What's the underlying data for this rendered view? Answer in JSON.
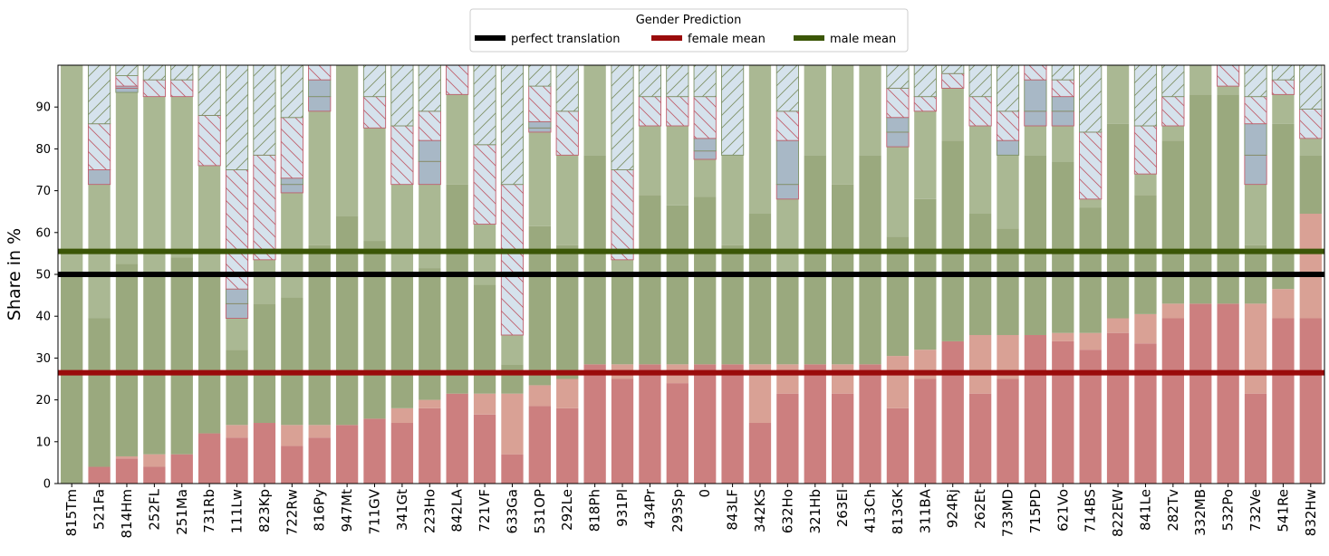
{
  "chart_data": {
    "type": "bar",
    "ylabel": "Share in %",
    "ylim": [
      0,
      100
    ],
    "yticks": [
      0,
      10,
      20,
      30,
      40,
      50,
      60,
      70,
      80,
      90
    ],
    "legend": {
      "title": "Gender Prediction",
      "placement": "top-center",
      "entries": [
        {
          "label": "perfect translation",
          "color": "#000000"
        },
        {
          "label": "female mean",
          "color": "#9a0b0b"
        },
        {
          "label": "male mean",
          "color": "#3b5607"
        }
      ]
    },
    "hlines": [
      {
        "name": "perfect translation",
        "y": 50,
        "color": "#000000"
      },
      {
        "name": "female mean",
        "y": 26.5,
        "color": "#9a0b0b"
      },
      {
        "name": "male mean",
        "y": 55.5,
        "color": "#3b5607"
      }
    ],
    "colors": {
      "female_dark": "#cc7f7f",
      "female_light": "#d9a195",
      "male_dark": "#9aa97e",
      "male_light": "#aab893",
      "neutral_hatch": "#d5e2ec",
      "other_steel": "#a8b8c6",
      "hatch_red": "#c0606e",
      "hatch_green": "#7f9268"
    },
    "categories": [
      "815Tm",
      "521Fa",
      "814Hm",
      "252FL",
      "251Ma",
      "731Rb",
      "111Lw",
      "823Kp",
      "722Rw",
      "816Py",
      "947Mt",
      "711GV",
      "341Gt",
      "223Ho",
      "842LA",
      "721VF",
      "633Ga",
      "531OP",
      "292Le",
      "818Ph",
      "931Pl",
      "434Pr",
      "293Sp",
      "0",
      "843LF",
      "342KS",
      "632Ho",
      "321Hb",
      "263El",
      "413Ch",
      "813GK",
      "311BA",
      "924Rj",
      "262Et",
      "733MD",
      "715PD",
      "621Vo",
      "714BS",
      "822EW",
      "841Le",
      "282Tv",
      "332MB",
      "532Po",
      "732Ve",
      "541Re",
      "832Hw"
    ],
    "segments_legend": [
      "female",
      "female (lighter)",
      "male",
      "male (lighter)",
      "other",
      "neutral (red hatch)",
      "neutral (green hatch)"
    ],
    "stacks": [
      [
        [
          0,
          "m_dark"
        ],
        [
          50,
          "m_light"
        ],
        [
          100,
          "end"
        ]
      ],
      [
        [
          0,
          "f_dark"
        ],
        [
          4,
          "m_dark"
        ],
        [
          39.5,
          "m_light"
        ],
        [
          71.5,
          "o_red"
        ],
        [
          75,
          "n_red"
        ],
        [
          86,
          "n_green"
        ],
        [
          100,
          "end"
        ]
      ],
      [
        [
          0,
          "f_dark"
        ],
        [
          6,
          "f_light"
        ],
        [
          6.5,
          "m_dark"
        ],
        [
          52.5,
          "m_light"
        ],
        [
          93.5,
          "o_green"
        ],
        [
          94.5,
          "o_red"
        ],
        [
          95,
          "n_red"
        ],
        [
          97.5,
          "n_green"
        ],
        [
          100,
          "end"
        ]
      ],
      [
        [
          0,
          "f_dark"
        ],
        [
          4,
          "f_light"
        ],
        [
          7,
          "m_dark"
        ],
        [
          50,
          "m_light"
        ],
        [
          92.5,
          "n_red"
        ],
        [
          96.5,
          "n_green"
        ],
        [
          100,
          "end"
        ]
      ],
      [
        [
          0,
          "f_dark"
        ],
        [
          7,
          "m_dark"
        ],
        [
          54,
          "m_light"
        ],
        [
          92.5,
          "n_red"
        ],
        [
          96.5,
          "n_green"
        ],
        [
          100,
          "end"
        ]
      ],
      [
        [
          0,
          "f_dark"
        ],
        [
          12,
          "m_dark"
        ],
        [
          50,
          "m_light"
        ],
        [
          76,
          "n_red"
        ],
        [
          88,
          "n_green"
        ],
        [
          100,
          "end"
        ]
      ],
      [
        [
          0,
          "f_dark"
        ],
        [
          11,
          "f_light"
        ],
        [
          14,
          "m_dark"
        ],
        [
          32,
          "m_light"
        ],
        [
          39.5,
          "o_red"
        ],
        [
          43,
          "o_green"
        ],
        [
          46.5,
          "n_red"
        ],
        [
          75,
          "n_green"
        ],
        [
          100,
          "end"
        ]
      ],
      [
        [
          0,
          "f_dark"
        ],
        [
          14.5,
          "m_dark"
        ],
        [
          43,
          "m_light"
        ],
        [
          53.5,
          "n_red"
        ],
        [
          78.5,
          "n_green"
        ],
        [
          100,
          "end"
        ]
      ],
      [
        [
          0,
          "f_dark"
        ],
        [
          9,
          "f_light"
        ],
        [
          14,
          "m_dark"
        ],
        [
          44.5,
          "m_light"
        ],
        [
          69.5,
          "o_red"
        ],
        [
          71.5,
          "o_green"
        ],
        [
          73,
          "n_red"
        ],
        [
          87.5,
          "n_green"
        ],
        [
          100,
          "end"
        ]
      ],
      [
        [
          0,
          "f_dark"
        ],
        [
          11,
          "f_light"
        ],
        [
          14,
          "m_dark"
        ],
        [
          57,
          "m_light"
        ],
        [
          89,
          "o_red"
        ],
        [
          92.5,
          "o_green"
        ],
        [
          96.5,
          "n_red"
        ],
        [
          100,
          "end"
        ]
      ],
      [
        [
          0,
          "f_dark"
        ],
        [
          14,
          "m_dark"
        ],
        [
          64,
          "m_light"
        ],
        [
          100,
          "end"
        ]
      ],
      [
        [
          0,
          "f_dark"
        ],
        [
          15.5,
          "m_dark"
        ],
        [
          58,
          "m_light"
        ],
        [
          85,
          "n_red"
        ],
        [
          92.5,
          "n_green"
        ],
        [
          100,
          "end"
        ]
      ],
      [
        [
          0,
          "f_dark"
        ],
        [
          14.5,
          "f_light"
        ],
        [
          18,
          "m_dark"
        ],
        [
          50,
          "m_light"
        ],
        [
          71.5,
          "n_red"
        ],
        [
          85.5,
          "n_green"
        ],
        [
          100,
          "end"
        ]
      ],
      [
        [
          0,
          "f_dark"
        ],
        [
          18,
          "f_light"
        ],
        [
          20,
          "m_dark"
        ],
        [
          51.5,
          "m_light"
        ],
        [
          71.5,
          "o_red"
        ],
        [
          77,
          "o_green"
        ],
        [
          82,
          "n_red"
        ],
        [
          89,
          "n_green"
        ],
        [
          100,
          "end"
        ]
      ],
      [
        [
          0,
          "f_dark"
        ],
        [
          21.5,
          "m_dark"
        ],
        [
          71.5,
          "m_light"
        ],
        [
          93,
          "n_red"
        ],
        [
          100,
          "end"
        ]
      ],
      [
        [
          0,
          "f_dark"
        ],
        [
          16.5,
          "f_light"
        ],
        [
          21.5,
          "m_dark"
        ],
        [
          47.5,
          "m_light"
        ],
        [
          62,
          "n_red"
        ],
        [
          81,
          "n_green"
        ],
        [
          100,
          "end"
        ]
      ],
      [
        [
          0,
          "f_dark"
        ],
        [
          7,
          "f_light"
        ],
        [
          21.5,
          "m_dark"
        ],
        [
          28.5,
          "m_light"
        ],
        [
          35.5,
          "n_red"
        ],
        [
          71.5,
          "n_green"
        ],
        [
          100,
          "end"
        ]
      ],
      [
        [
          0,
          "f_dark"
        ],
        [
          18.5,
          "f_light"
        ],
        [
          23.5,
          "m_dark"
        ],
        [
          61.5,
          "m_light"
        ],
        [
          84,
          "o_red"
        ],
        [
          85,
          "o_green"
        ],
        [
          86.5,
          "n_red"
        ],
        [
          95,
          "n_green"
        ],
        [
          100,
          "end"
        ]
      ],
      [
        [
          0,
          "f_dark"
        ],
        [
          18,
          "f_light"
        ],
        [
          25,
          "m_dark"
        ],
        [
          57,
          "m_light"
        ],
        [
          78.5,
          "n_red"
        ],
        [
          89,
          "n_green"
        ],
        [
          100,
          "end"
        ]
      ],
      [
        [
          0,
          "f_dark"
        ],
        [
          28.5,
          "m_dark"
        ],
        [
          78.5,
          "m_light"
        ],
        [
          100,
          "end"
        ]
      ],
      [
        [
          0,
          "f_dark"
        ],
        [
          25,
          "f_light"
        ],
        [
          28.5,
          "m_dark"
        ],
        [
          50,
          "m_light"
        ],
        [
          53.5,
          "n_red"
        ],
        [
          75,
          "n_green"
        ],
        [
          100,
          "end"
        ]
      ],
      [
        [
          0,
          "f_dark"
        ],
        [
          28.5,
          "m_dark"
        ],
        [
          69,
          "m_light"
        ],
        [
          85.5,
          "n_red"
        ],
        [
          92.5,
          "n_green"
        ],
        [
          100,
          "end"
        ]
      ],
      [
        [
          0,
          "f_dark"
        ],
        [
          24,
          "f_light"
        ],
        [
          28.5,
          "m_dark"
        ],
        [
          66.5,
          "m_light"
        ],
        [
          85.5,
          "n_red"
        ],
        [
          92.5,
          "n_green"
        ],
        [
          100,
          "end"
        ]
      ],
      [
        [
          0,
          "f_dark"
        ],
        [
          28.5,
          "m_dark"
        ],
        [
          68.5,
          "m_light"
        ],
        [
          77.5,
          "o_red"
        ],
        [
          79.5,
          "o_green"
        ],
        [
          82.5,
          "n_red"
        ],
        [
          92.5,
          "n_green"
        ],
        [
          100,
          "end"
        ]
      ],
      [
        [
          0,
          "f_dark"
        ],
        [
          28.5,
          "m_dark"
        ],
        [
          57,
          "m_light"
        ],
        [
          78.5,
          "n_green"
        ],
        [
          100,
          "end"
        ]
      ],
      [
        [
          0,
          "f_dark"
        ],
        [
          14.5,
          "f_light"
        ],
        [
          28.5,
          "m_dark"
        ],
        [
          64.5,
          "m_light"
        ],
        [
          100,
          "end"
        ]
      ],
      [
        [
          0,
          "f_dark"
        ],
        [
          21.5,
          "f_light"
        ],
        [
          28.5,
          "m_dark"
        ],
        [
          50,
          "m_light"
        ],
        [
          68,
          "o_red"
        ],
        [
          71.5,
          "o_green"
        ],
        [
          82,
          "n_red"
        ],
        [
          89,
          "n_green"
        ],
        [
          100,
          "end"
        ]
      ],
      [
        [
          0,
          "f_dark"
        ],
        [
          28.5,
          "m_dark"
        ],
        [
          78.5,
          "m_light"
        ],
        [
          100,
          "end"
        ]
      ],
      [
        [
          0,
          "f_dark"
        ],
        [
          21.5,
          "f_light"
        ],
        [
          28.5,
          "m_dark"
        ],
        [
          71.5,
          "m_light"
        ],
        [
          100,
          "end"
        ]
      ],
      [
        [
          0,
          "f_dark"
        ],
        [
          28.5,
          "m_dark"
        ],
        [
          78.5,
          "m_light"
        ],
        [
          100,
          "end"
        ]
      ],
      [
        [
          0,
          "f_dark"
        ],
        [
          18,
          "f_light"
        ],
        [
          30.5,
          "m_dark"
        ],
        [
          59,
          "m_light"
        ],
        [
          80.5,
          "o_red"
        ],
        [
          84,
          "o_green"
        ],
        [
          87.5,
          "n_red"
        ],
        [
          94.5,
          "n_green"
        ],
        [
          100,
          "end"
        ]
      ],
      [
        [
          0,
          "f_dark"
        ],
        [
          25,
          "f_light"
        ],
        [
          32,
          "m_dark"
        ],
        [
          68,
          "m_light"
        ],
        [
          89,
          "n_red"
        ],
        [
          92.5,
          "n_green"
        ],
        [
          100,
          "end"
        ]
      ],
      [
        [
          0,
          "f_dark"
        ],
        [
          34,
          "m_dark"
        ],
        [
          82,
          "m_light"
        ],
        [
          94.5,
          "n_red"
        ],
        [
          98,
          "n_green"
        ],
        [
          100,
          "end"
        ]
      ],
      [
        [
          0,
          "f_dark"
        ],
        [
          21.5,
          "f_light"
        ],
        [
          35.5,
          "m_dark"
        ],
        [
          64.5,
          "m_light"
        ],
        [
          85.5,
          "n_red"
        ],
        [
          92.5,
          "n_green"
        ],
        [
          100,
          "end"
        ]
      ],
      [
        [
          0,
          "f_dark"
        ],
        [
          25,
          "f_light"
        ],
        [
          35.5,
          "m_dark"
        ],
        [
          61,
          "m_light"
        ],
        [
          78.5,
          "o_green"
        ],
        [
          82,
          "n_red"
        ],
        [
          89,
          "n_green"
        ],
        [
          100,
          "end"
        ]
      ],
      [
        [
          0,
          "f_dark"
        ],
        [
          35.5,
          "m_dark"
        ],
        [
          78.5,
          "m_light"
        ],
        [
          85.5,
          "o_red"
        ],
        [
          89,
          "o_green"
        ],
        [
          96.5,
          "n_red"
        ],
        [
          100,
          "end"
        ]
      ],
      [
        [
          0,
          "f_dark"
        ],
        [
          34,
          "f_light"
        ],
        [
          36,
          "m_dark"
        ],
        [
          77,
          "m_light"
        ],
        [
          85.5,
          "o_red"
        ],
        [
          89,
          "o_green"
        ],
        [
          92.5,
          "n_red"
        ],
        [
          96.5,
          "n_green"
        ],
        [
          100,
          "end"
        ]
      ],
      [
        [
          0,
          "f_dark"
        ],
        [
          32,
          "f_light"
        ],
        [
          36,
          "m_dark"
        ],
        [
          66,
          "m_light"
        ],
        [
          68,
          "n_red"
        ],
        [
          84,
          "n_green"
        ],
        [
          100,
          "end"
        ]
      ],
      [
        [
          0,
          "f_dark"
        ],
        [
          36,
          "f_light"
        ],
        [
          39.5,
          "m_dark"
        ],
        [
          86,
          "m_light"
        ],
        [
          100,
          "end"
        ]
      ],
      [
        [
          0,
          "f_dark"
        ],
        [
          33.5,
          "f_light"
        ],
        [
          40.5,
          "m_dark"
        ],
        [
          69,
          "m_light"
        ],
        [
          74,
          "n_red"
        ],
        [
          85.5,
          "n_green"
        ],
        [
          100,
          "end"
        ]
      ],
      [
        [
          0,
          "f_dark"
        ],
        [
          39.5,
          "f_light"
        ],
        [
          43,
          "m_dark"
        ],
        [
          82,
          "m_light"
        ],
        [
          85.5,
          "n_red"
        ],
        [
          92.5,
          "n_green"
        ],
        [
          100,
          "end"
        ]
      ],
      [
        [
          0,
          "f_dark"
        ],
        [
          43,
          "m_dark"
        ],
        [
          93,
          "m_light"
        ],
        [
          100,
          "end"
        ]
      ],
      [
        [
          0,
          "f_dark"
        ],
        [
          43,
          "m_dark"
        ],
        [
          93,
          "m_light"
        ],
        [
          95,
          "n_red"
        ],
        [
          100,
          "end"
        ]
      ],
      [
        [
          0,
          "f_dark"
        ],
        [
          21.5,
          "f_light"
        ],
        [
          43,
          "m_dark"
        ],
        [
          57,
          "m_light"
        ],
        [
          71.5,
          "o_red"
        ],
        [
          78.5,
          "o_green"
        ],
        [
          86,
          "n_red"
        ],
        [
          92.5,
          "n_green"
        ],
        [
          100,
          "end"
        ]
      ],
      [
        [
          0,
          "f_dark"
        ],
        [
          39.5,
          "f_light"
        ],
        [
          46.5,
          "m_dark"
        ],
        [
          86,
          "m_light"
        ],
        [
          93,
          "n_red"
        ],
        [
          96.5,
          "n_green"
        ],
        [
          100,
          "end"
        ]
      ],
      [
        [
          0,
          "f_dark"
        ],
        [
          39.5,
          "f_light"
        ],
        [
          64.5,
          "m_dark"
        ],
        [
          78.5,
          "m_light"
        ],
        [
          82.5,
          "n_red"
        ],
        [
          89.5,
          "n_green"
        ],
        [
          100,
          "end"
        ]
      ]
    ]
  }
}
